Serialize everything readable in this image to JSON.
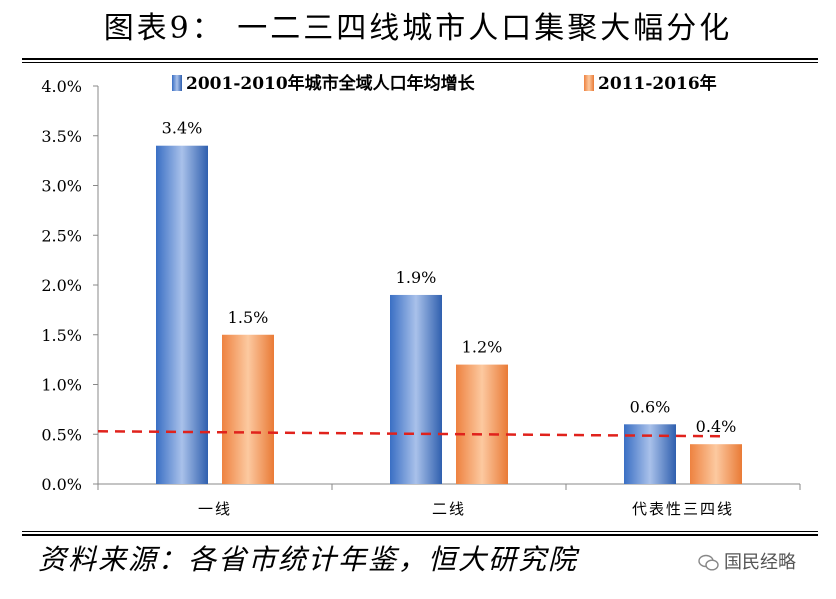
{
  "title": "图表9：  一二三四线城市人口集聚大幅分化",
  "source": "资料来源：各省市统计年鉴，恒大研究院",
  "watermark": "国民经略",
  "colors": {
    "series1": "#3d6fc0",
    "series2": "#f08a4b",
    "reference_line": "#e0221c"
  },
  "chart_data": {
    "type": "bar",
    "categories": [
      "一线",
      "二线",
      "代表性三四线"
    ],
    "series": [
      {
        "name": "2001-2010年城市全域人口年均增长",
        "values": [
          3.4,
          1.9,
          0.6
        ],
        "labels": [
          "3.4%",
          "1.9%",
          "0.6%"
        ]
      },
      {
        "name": "2011-2016年",
        "values": [
          1.5,
          1.2,
          0.4
        ],
        "labels": [
          "1.5%",
          "1.2%",
          "0.4%"
        ]
      }
    ],
    "reference_line": {
      "style": "dashed",
      "color": "#e0221c",
      "start": 0.53,
      "end": 0.48
    },
    "yticks": [
      "0.0%",
      "0.5%",
      "1.0%",
      "1.5%",
      "2.0%",
      "2.5%",
      "3.0%",
      "3.5%",
      "4.0%"
    ],
    "ylim": [
      0,
      4.0
    ],
    "legend_position": "top"
  }
}
